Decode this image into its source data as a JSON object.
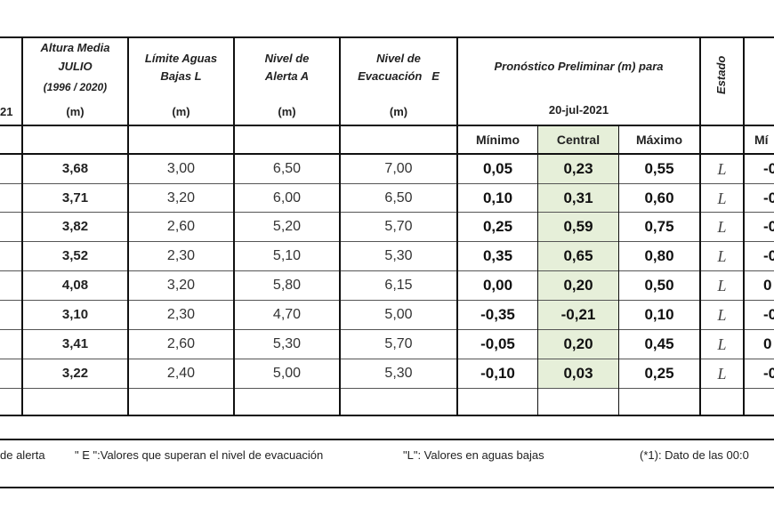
{
  "header": {
    "left_fragment": "21",
    "altura_title": "Altura Media",
    "altura_month": "JULIO",
    "altura_range": "(1996 / 2020)",
    "limite_line1": "Límite Aguas",
    "limite_line2": "Bajas L",
    "alerta_line1": "Nivel de",
    "alerta_line2": "Alerta A",
    "evac_line1": "Nivel de",
    "evac_line2": "Evacuación   E",
    "pronostico_title": "Pronóstico Preliminar (m) para",
    "pronostico_date": "20-jul-2021",
    "estado": "Estado",
    "unit": "(m)",
    "sub_minimo": "Mínimo",
    "sub_central": "Central",
    "sub_maximo": "Máximo",
    "sub_right_fragment": "Mí"
  },
  "rows": [
    {
      "altura": "3,68",
      "limite": "3,00",
      "alerta": "6,50",
      "evac": "7,00",
      "min": "0,05",
      "central": "0,23",
      "max": "0,55",
      "estado": "L",
      "right": "-0"
    },
    {
      "altura": "3,71",
      "limite": "3,20",
      "alerta": "6,00",
      "evac": "6,50",
      "min": "0,10",
      "central": "0,31",
      "max": "0,60",
      "estado": "L",
      "right": "-0"
    },
    {
      "altura": "3,82",
      "limite": "2,60",
      "alerta": "5,20",
      "evac": "5,70",
      "min": "0,25",
      "central": "0,59",
      "max": "0,75",
      "estado": "L",
      "right": "-0"
    },
    {
      "altura": "3,52",
      "limite": "2,30",
      "alerta": "5,10",
      "evac": "5,30",
      "min": "0,35",
      "central": "0,65",
      "max": "0,80",
      "estado": "L",
      "right": "-0"
    },
    {
      "altura": "4,08",
      "limite": "3,20",
      "alerta": "5,80",
      "evac": "6,15",
      "min": "0,00",
      "central": "0,20",
      "max": "0,50",
      "estado": "L",
      "right": "0"
    },
    {
      "altura": "3,10",
      "limite": "2,30",
      "alerta": "4,70",
      "evac": "5,00",
      "min": "-0,35",
      "central": "-0,21",
      "max": "0,10",
      "estado": "L",
      "right": "-0"
    },
    {
      "altura": "3,41",
      "limite": "2,60",
      "alerta": "5,30",
      "evac": "5,70",
      "min": "-0,05",
      "central": "0,20",
      "max": "0,45",
      "estado": "L",
      "right": "0"
    },
    {
      "altura": "3,22",
      "limite": "2,40",
      "alerta": "5,00",
      "evac": "5,30",
      "min": "-0,10",
      "central": "0,03",
      "max": "0,25",
      "estado": "L",
      "right": "-0"
    }
  ],
  "footer": {
    "alerta_note": "de alerta",
    "evac_note": "\" E \":Valores que superan el nivel de evacuación",
    "bajas_note": "\"L\": Valores en aguas bajas",
    "dato_note": "(*1): Dato de las 00:0"
  }
}
